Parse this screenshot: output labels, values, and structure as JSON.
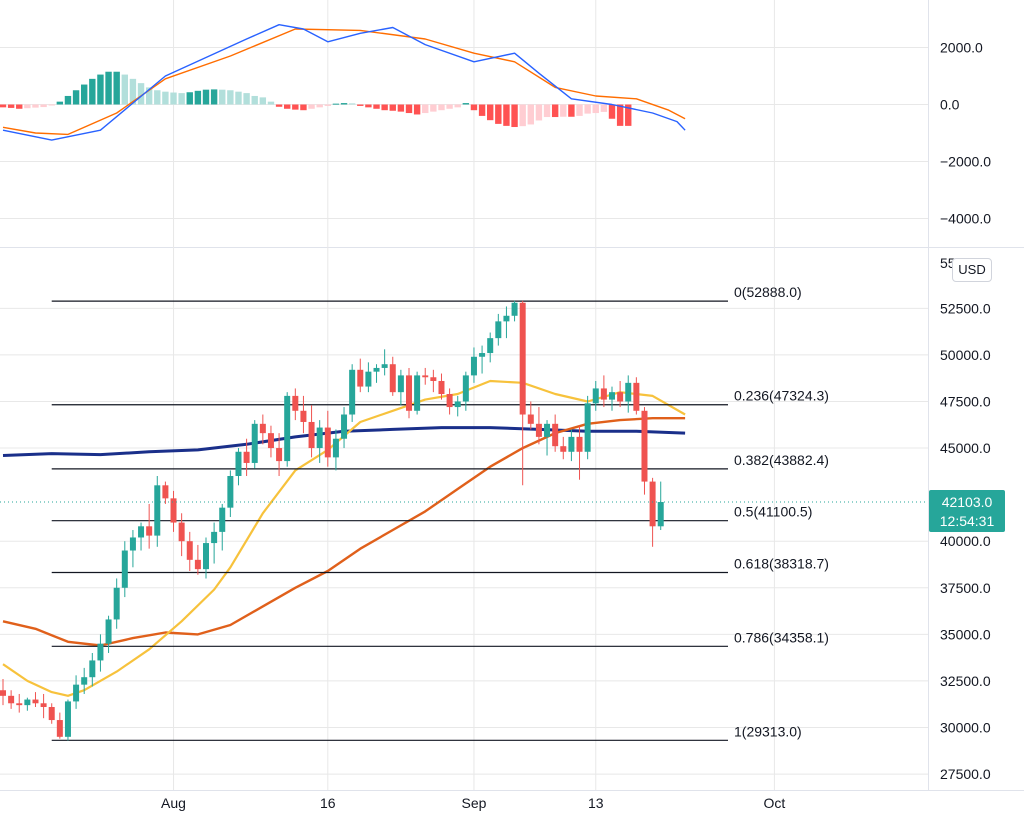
{
  "currency_label": "USD",
  "price_tag": {
    "price": "42103.0",
    "countdown": "12:54:31",
    "color": "#26a69a"
  },
  "colors": {
    "up": "#26a69a",
    "down": "#ef5350",
    "hist_up_strong": "#26a69a",
    "hist_up_weak": "#b2dfdb",
    "hist_down_strong": "#ff5252",
    "hist_down_weak": "#ffcdd2",
    "macd_line": "#2962ff",
    "signal_line": "#ff6d00",
    "ma_yellow": "#f7c23c",
    "ma_orange": "#e0601b",
    "ma_navy": "#1a2f8a",
    "fib_line": "#131722",
    "grid": "#e8e8e8",
    "axis_border": "#e0e3eb"
  },
  "chart_data": [
    {
      "type": "line",
      "name": "MACD",
      "yticks": [
        "2000.0",
        "0.0",
        "−2000.0",
        "−4000.0"
      ],
      "ylim": [
        -4600,
        3600
      ],
      "histogram": [
        -100,
        -120,
        -150,
        -130,
        -110,
        -90,
        -30,
        100,
        300,
        500,
        700,
        900,
        1050,
        1150,
        1150,
        1050,
        900,
        750,
        600,
        500,
        450,
        420,
        400,
        430,
        480,
        520,
        530,
        520,
        500,
        450,
        400,
        300,
        250,
        100,
        -80,
        -150,
        -180,
        -200,
        -150,
        -100,
        -50,
        30,
        50,
        40,
        -50,
        -100,
        -150,
        -200,
        -220,
        -250,
        -300,
        -350,
        -300,
        -250,
        -200,
        -150,
        -100,
        50,
        -200,
        -400,
        -550,
        -680,
        -750,
        -790,
        -760,
        -700,
        -560,
        -440,
        -440,
        -430,
        -430,
        -400,
        -320,
        -300,
        -260,
        -500,
        -750,
        -750
      ],
      "macd_points": [
        [
          0,
          -900
        ],
        [
          6,
          -1250
        ],
        [
          12,
          -900
        ],
        [
          20,
          1000
        ],
        [
          30,
          2300
        ],
        [
          34,
          2800
        ],
        [
          37,
          2650
        ],
        [
          40,
          2200
        ],
        [
          44,
          2500
        ],
        [
          48,
          2700
        ],
        [
          52,
          2100
        ],
        [
          58,
          1500
        ],
        [
          63,
          1800
        ],
        [
          66,
          1100
        ],
        [
          70,
          200
        ],
        [
          75,
          0
        ],
        [
          80,
          -300
        ],
        [
          83,
          -600
        ],
        [
          84,
          -900
        ]
      ],
      "signal_points": [
        [
          0,
          -800
        ],
        [
          4,
          -1000
        ],
        [
          8,
          -1050
        ],
        [
          14,
          -300
        ],
        [
          20,
          900
        ],
        [
          28,
          1700
        ],
        [
          36,
          2650
        ],
        [
          44,
          2600
        ],
        [
          52,
          2300
        ],
        [
          58,
          1800
        ],
        [
          63,
          1500
        ],
        [
          68,
          600
        ],
        [
          73,
          300
        ],
        [
          78,
          200
        ],
        [
          82,
          -200
        ],
        [
          84,
          -500
        ]
      ]
    },
    {
      "type": "candlestick",
      "name": "BTCUSD daily",
      "yticks": [
        "27500.0",
        "30000.0",
        "32500.0",
        "35000.0",
        "37500.0",
        "40000.0",
        "45000.0",
        "47500.0",
        "50000.0",
        "52500.0"
      ],
      "ytick_top_partial": "55",
      "ylim": [
        26500,
        55500
      ],
      "xlabels": [
        {
          "label": "Aug",
          "x": 21
        },
        {
          "label": "16",
          "x": 40
        },
        {
          "label": "Sep",
          "x": 58
        },
        {
          "label": "13",
          "x": 73
        },
        {
          "label": "Oct",
          "x": 95
        }
      ],
      "ohlc": [
        [
          32000,
          32600,
          31200,
          31700
        ],
        [
          31700,
          32000,
          31000,
          31300
        ],
        [
          31300,
          31800,
          30800,
          31200
        ],
        [
          31200,
          31600,
          30900,
          31500
        ],
        [
          31500,
          31900,
          31100,
          31300
        ],
        [
          31300,
          31800,
          30500,
          31100
        ],
        [
          31100,
          31300,
          30200,
          30400
        ],
        [
          30400,
          30800,
          29400,
          29500
        ],
        [
          29500,
          31500,
          29300,
          31400
        ],
        [
          31400,
          32800,
          31000,
          32300
        ],
        [
          32300,
          33200,
          31800,
          32700
        ],
        [
          32700,
          34000,
          32200,
          33600
        ],
        [
          33600,
          35000,
          33000,
          34500
        ],
        [
          34500,
          36000,
          34000,
          35800
        ],
        [
          35800,
          38000,
          35300,
          37500
        ],
        [
          37500,
          40000,
          37000,
          39500
        ],
        [
          39500,
          40600,
          38600,
          40200
        ],
        [
          40200,
          41000,
          39500,
          40800
        ],
        [
          40800,
          42000,
          39600,
          40300
        ],
        [
          40300,
          43500,
          39700,
          43000
        ],
        [
          43000,
          43200,
          42000,
          42300
        ],
        [
          42300,
          42700,
          40500,
          41000
        ],
        [
          41000,
          41500,
          39200,
          40000
        ],
        [
          40000,
          40500,
          38400,
          39000
        ],
        [
          39000,
          39800,
          38200,
          38500
        ],
        [
          38500,
          40200,
          38000,
          39900
        ],
        [
          39900,
          41000,
          38800,
          40500
        ],
        [
          40500,
          42000,
          39500,
          41800
        ],
        [
          41800,
          43800,
          41300,
          43500
        ],
        [
          43500,
          45000,
          43000,
          44800
        ],
        [
          44800,
          45500,
          43500,
          44200
        ],
        [
          44200,
          46500,
          43900,
          46300
        ],
        [
          46300,
          46800,
          45200,
          45800
        ],
        [
          45800,
          46200,
          44500,
          45000
        ],
        [
          45000,
          45800,
          43500,
          44300
        ],
        [
          44300,
          48000,
          44000,
          47800
        ],
        [
          47800,
          48200,
          46500,
          47000
        ],
        [
          47000,
          47800,
          45800,
          46400
        ],
        [
          46400,
          47300,
          44500,
          45000
        ],
        [
          45000,
          46500,
          44200,
          46100
        ],
        [
          46100,
          47000,
          44000,
          44500
        ],
        [
          44500,
          46000,
          43800,
          45500
        ],
        [
          45500,
          47200,
          45000,
          46800
        ],
        [
          46800,
          49500,
          46400,
          49200
        ],
        [
          49200,
          49800,
          48000,
          48300
        ],
        [
          48300,
          49600,
          48000,
          49100
        ],
        [
          49100,
          49500,
          48500,
          49300
        ],
        [
          49300,
          50300,
          48900,
          49500
        ],
        [
          49500,
          49900,
          47800,
          48000
        ],
        [
          48000,
          49200,
          47300,
          48900
        ],
        [
          48900,
          49300,
          46600,
          47000
        ],
        [
          47000,
          49100,
          46800,
          48900
        ],
        [
          48900,
          49300,
          48400,
          48800
        ],
        [
          48800,
          49200,
          48000,
          48600
        ],
        [
          48600,
          49000,
          47600,
          47900
        ],
        [
          47900,
          48200,
          46800,
          47200
        ],
        [
          47200,
          47800,
          46700,
          47500
        ],
        [
          47500,
          49100,
          47000,
          48900
        ],
        [
          48900,
          50400,
          48500,
          49900
        ],
        [
          49900,
          50500,
          49000,
          50100
        ],
        [
          50100,
          51200,
          49600,
          50900
        ],
        [
          50900,
          52200,
          50500,
          51800
        ],
        [
          51800,
          52600,
          50900,
          52100
        ],
        [
          52100,
          52900,
          51800,
          52800
        ],
        [
          52800,
          52900,
          43000,
          46800
        ],
        [
          46800,
          47500,
          46000,
          46300
        ],
        [
          46300,
          47200,
          45200,
          45600
        ],
        [
          45600,
          46500,
          44600,
          46300
        ],
        [
          46300,
          46800,
          44800,
          45100
        ],
        [
          45100,
          45600,
          44400,
          44800
        ],
        [
          44800,
          46000,
          44300,
          45600
        ],
        [
          45600,
          46200,
          43300,
          44800
        ],
        [
          44800,
          47800,
          44400,
          47400
        ],
        [
          47400,
          48600,
          47000,
          48200
        ],
        [
          48200,
          48900,
          47200,
          47600
        ],
        [
          47600,
          48300,
          47000,
          48000
        ],
        [
          48000,
          48600,
          47200,
          47500
        ],
        [
          47500,
          48900,
          46900,
          48500
        ],
        [
          48500,
          48800,
          46800,
          47000
        ],
        [
          47000,
          47200,
          42500,
          43200
        ],
        [
          43200,
          43400,
          39700,
          40800
        ],
        [
          40800,
          43200,
          40600,
          42103
        ]
      ],
      "ma_yellow": [
        [
          0,
          33400
        ],
        [
          3,
          32500
        ],
        [
          6,
          31900
        ],
        [
          8,
          31700
        ],
        [
          10,
          32000
        ],
        [
          14,
          33000
        ],
        [
          18,
          34200
        ],
        [
          22,
          35700
        ],
        [
          26,
          37400
        ],
        [
          28,
          38600
        ],
        [
          32,
          41500
        ],
        [
          36,
          43800
        ],
        [
          40,
          44900
        ],
        [
          44,
          46400
        ],
        [
          48,
          47000
        ],
        [
          52,
          47600
        ],
        [
          56,
          47900
        ],
        [
          60,
          48600
        ],
        [
          64,
          48500
        ],
        [
          68,
          47900
        ],
        [
          72,
          47500
        ],
        [
          76,
          48000
        ],
        [
          80,
          47800
        ],
        [
          84,
          46800
        ]
      ],
      "ma_orange": [
        [
          0,
          35700
        ],
        [
          4,
          35300
        ],
        [
          8,
          34600
        ],
        [
          12,
          34400
        ],
        [
          16,
          34800
        ],
        [
          20,
          35100
        ],
        [
          24,
          35000
        ],
        [
          28,
          35500
        ],
        [
          32,
          36500
        ],
        [
          36,
          37500
        ],
        [
          40,
          38400
        ],
        [
          44,
          39600
        ],
        [
          48,
          40600
        ],
        [
          52,
          41600
        ],
        [
          56,
          42800
        ],
        [
          60,
          44000
        ],
        [
          64,
          45000
        ],
        [
          68,
          45800
        ],
        [
          72,
          46300
        ],
        [
          76,
          46500
        ],
        [
          80,
          46600
        ],
        [
          84,
          46600
        ]
      ],
      "ma_navy": [
        [
          0,
          44600
        ],
        [
          6,
          44700
        ],
        [
          12,
          44650
        ],
        [
          18,
          44800
        ],
        [
          24,
          44900
        ],
        [
          30,
          45200
        ],
        [
          36,
          45600
        ],
        [
          42,
          45900
        ],
        [
          48,
          46000
        ],
        [
          54,
          46100
        ],
        [
          60,
          46100
        ],
        [
          66,
          46000
        ],
        [
          72,
          45900
        ],
        [
          78,
          45900
        ],
        [
          84,
          45800
        ]
      ],
      "fibonacci": [
        {
          "label": "0(52888.0)",
          "value": 52888.0
        },
        {
          "label": "0.236(47324.3)",
          "value": 47324.3
        },
        {
          "label": "0.382(43882.4)",
          "value": 43882.4
        },
        {
          "label": "0.5(41100.5)",
          "value": 41100.5
        },
        {
          "label": "0.618(38318.7)",
          "value": 38318.7
        },
        {
          "label": "0.786(34358.1)",
          "value": 34358.1
        },
        {
          "label": "1(29313.0)",
          "value": 29313.0
        }
      ],
      "last_price": 42103.0
    }
  ]
}
